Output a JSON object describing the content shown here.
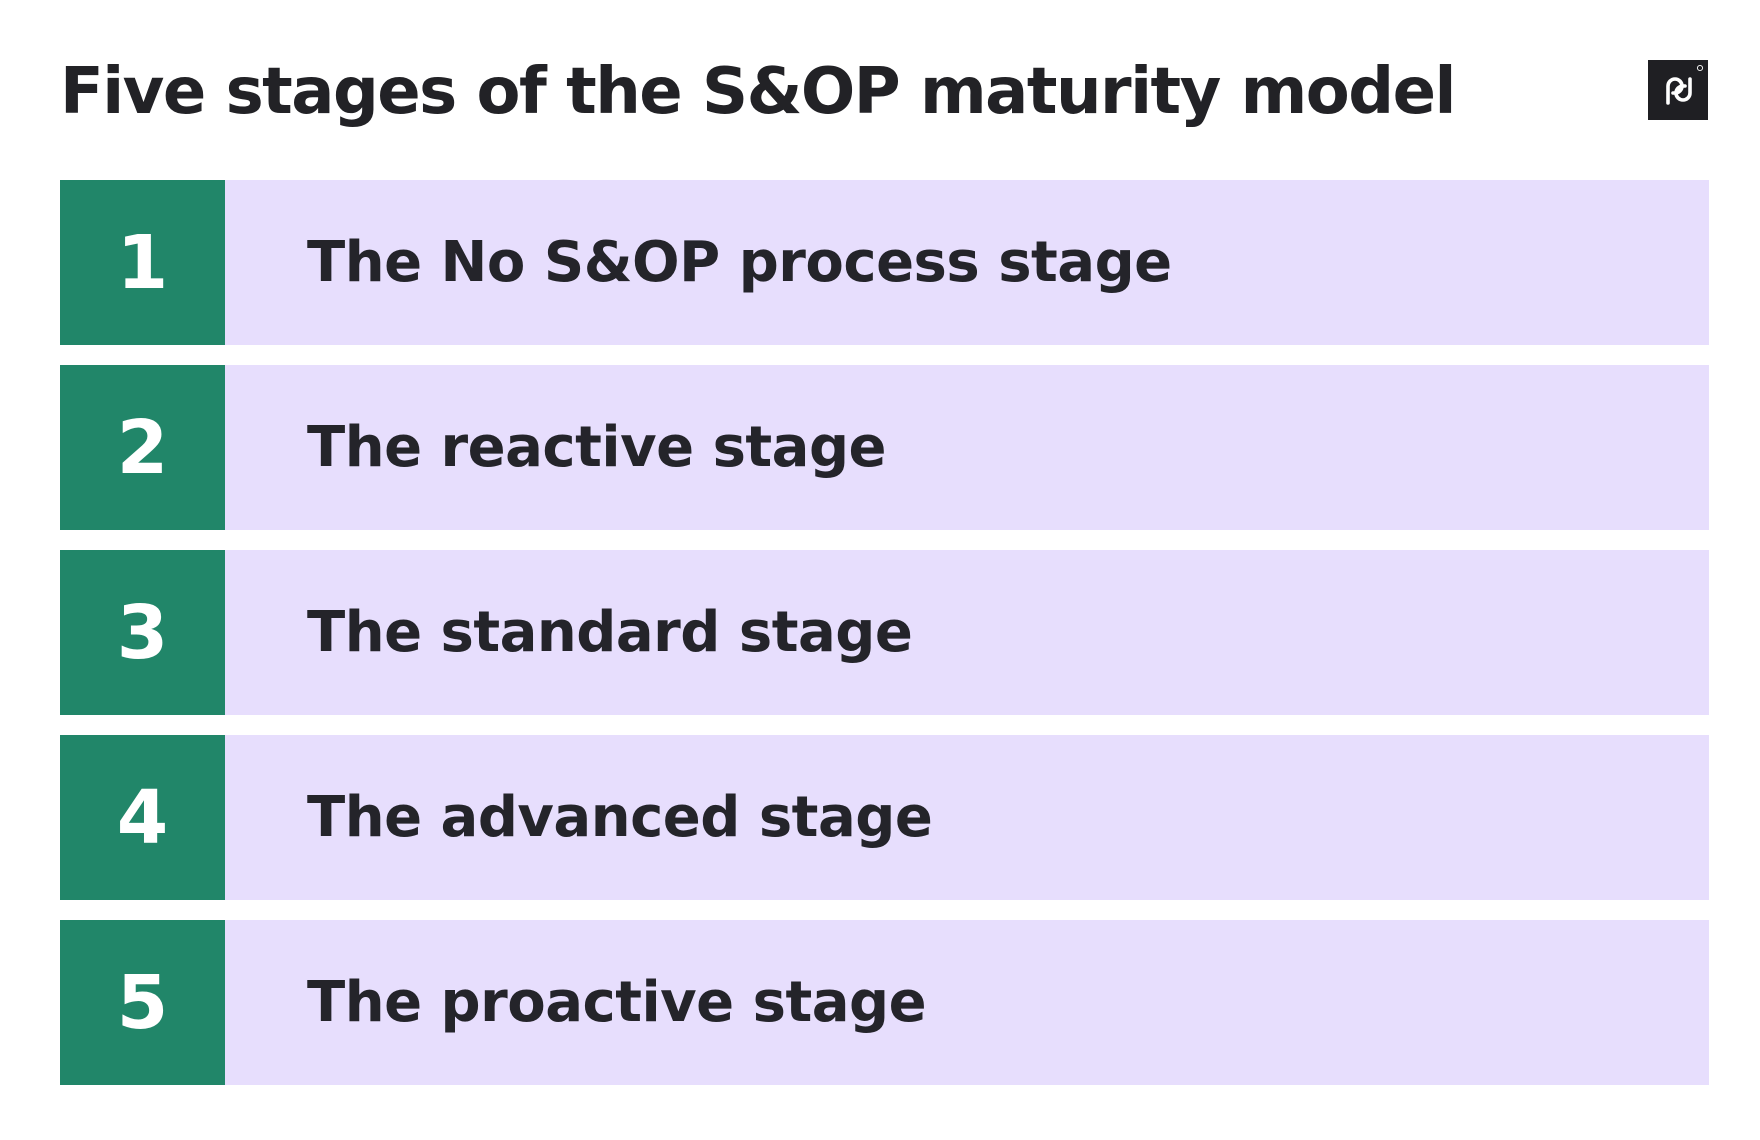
{
  "title": "Five stages of the S&OP maturity model",
  "logo": {
    "icon": "pd-logo-icon",
    "background": "#1f1f23",
    "foreground": "#ffffff"
  },
  "colors": {
    "number_background": "#218669",
    "row_background": "#e7defd",
    "text": "#24242a"
  },
  "stages": [
    {
      "number": "1",
      "label": "The No S&OP process stage"
    },
    {
      "number": "2",
      "label": "The reactive stage"
    },
    {
      "number": "3",
      "label": "The standard stage"
    },
    {
      "number": "4",
      "label": "The advanced stage"
    },
    {
      "number": "5",
      "label": "The proactive stage"
    }
  ]
}
